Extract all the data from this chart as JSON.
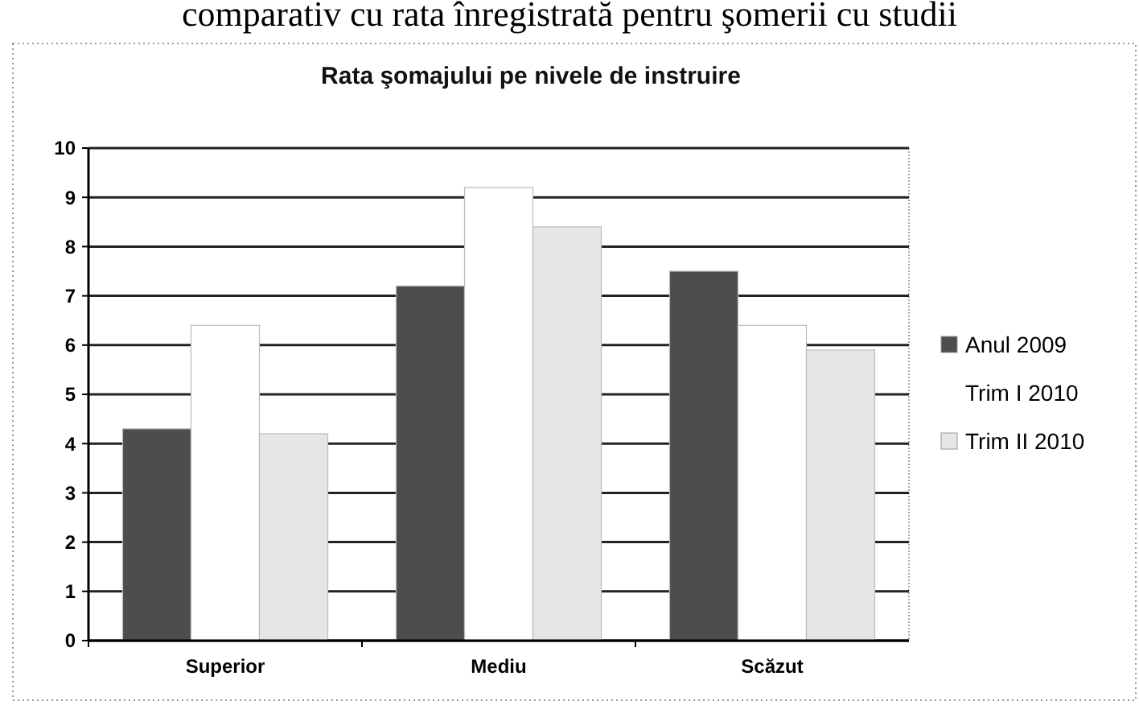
{
  "chart_data": {
    "type": "bar",
    "title": "Rata şomajului pe nivele de instruire",
    "annotations": [
      "comparativ cu rata înregistrată pentru şomerii cu studii"
    ],
    "categories": [
      "Superior",
      "Mediu",
      "Scăzut"
    ],
    "series": [
      {
        "name": "Anul 2009",
        "color": "#4d4d4d",
        "values": [
          4.3,
          7.2,
          7.5
        ]
      },
      {
        "name": "Trim I 2010",
        "color": "#ffffff",
        "values": [
          6.4,
          9.2,
          6.4
        ]
      },
      {
        "name": "Trim II 2010",
        "color": "#e6e6e6",
        "values": [
          4.2,
          8.4,
          5.9
        ]
      }
    ],
    "ylim": [
      0,
      10
    ],
    "yticks": [
      0,
      1,
      2,
      3,
      4,
      5,
      6,
      7,
      8,
      9,
      10
    ],
    "grid": "y",
    "legend": "right"
  }
}
